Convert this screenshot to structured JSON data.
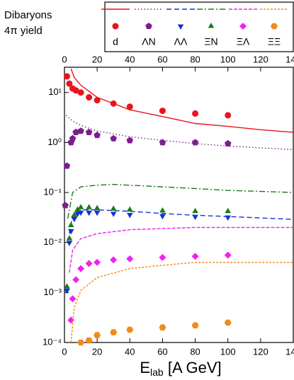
{
  "chart_data": {
    "type": "scatter",
    "title_lines": [
      "Dibaryons",
      "4π yield"
    ],
    "xlabel": {
      "main": "E",
      "sub": "lab",
      "rest": " [A GeV]"
    },
    "xlim": [
      0,
      140
    ],
    "xticks": [
      0,
      20,
      40,
      60,
      80,
      100,
      120,
      140
    ],
    "ylim": [
      0.0001,
      32
    ],
    "log_y": true,
    "yticks": [
      {
        "value": 0.0001,
        "label": "10⁻⁴"
      },
      {
        "value": 0.001,
        "label": "10⁻³"
      },
      {
        "value": 0.01,
        "label": "10⁻²"
      },
      {
        "value": 0.1,
        "label": "10⁻¹"
      },
      {
        "value": 1,
        "label": "10⁰"
      },
      {
        "value": 10,
        "label": "10¹"
      }
    ],
    "series": [
      {
        "name": "d",
        "color": "#e8141c",
        "marker": "circle",
        "dash": "",
        "x": [
          1.5,
          3,
          5,
          7,
          10,
          15,
          20,
          30,
          40,
          60,
          80,
          100
        ],
        "values": [
          21,
          15,
          12,
          11,
          10,
          8,
          7,
          6,
          5.2,
          4.3,
          3.8,
          3.5
        ],
        "line_x": [
          4,
          6,
          10,
          20,
          40,
          60,
          80,
          100,
          120,
          140
        ],
        "line_values": [
          30,
          20,
          14,
          8,
          4.5,
          3.3,
          2.4,
          2.1,
          1.8,
          1.6
        ]
      },
      {
        "name": "ΛN",
        "color": "#7b1e8c",
        "marker": "pentagon",
        "dash": "1.5,3",
        "x": [
          0.5,
          1.5,
          4,
          5,
          7,
          10,
          15,
          20,
          30,
          40,
          60,
          80,
          100
        ],
        "values": [
          0.055,
          0.34,
          1.0,
          1.2,
          1.6,
          1.7,
          1.6,
          1.4,
          1.2,
          1.1,
          1.0,
          1.0,
          0.95
        ],
        "line_x": [
          1,
          5,
          10,
          20,
          40,
          60,
          80,
          100,
          120,
          140
        ],
        "line_values": [
          3.5,
          2.7,
          2.2,
          1.7,
          1.3,
          1.1,
          0.95,
          0.85,
          0.78,
          0.72
        ]
      },
      {
        "name": "ΛΛ",
        "color": "#1530d8",
        "marker": "triangle-down",
        "dash": "7,4",
        "x": [
          1.5,
          3,
          4,
          6,
          8,
          10,
          15,
          20,
          30,
          40,
          60,
          80,
          100
        ],
        "values": [
          0.0011,
          0.01,
          0.017,
          0.03,
          0.038,
          0.04,
          0.04,
          0.04,
          0.038,
          0.036,
          0.034,
          0.033,
          0.032
        ],
        "line_x": [
          3,
          5,
          10,
          20,
          40,
          60,
          80,
          100,
          120,
          140
        ],
        "line_values": [
          0.015,
          0.035,
          0.045,
          0.045,
          0.042,
          0.038,
          0.035,
          0.033,
          0.031,
          0.029
        ]
      },
      {
        "name": "ΞN",
        "color": "#1a7d1a",
        "marker": "triangle-up",
        "dash": "8,3,2,3",
        "x": [
          1.5,
          3,
          4,
          6,
          8,
          10,
          15,
          20,
          30,
          40,
          60,
          80,
          100
        ],
        "values": [
          0.0013,
          0.012,
          0.022,
          0.035,
          0.045,
          0.05,
          0.05,
          0.048,
          0.047,
          0.045,
          0.043,
          0.042,
          0.042
        ],
        "line_x": [
          2,
          5,
          10,
          20,
          30,
          40,
          60,
          80,
          100,
          120,
          140
        ],
        "line_values": [
          0.03,
          0.1,
          0.13,
          0.14,
          0.145,
          0.14,
          0.13,
          0.12,
          0.11,
          0.105,
          0.1
        ]
      },
      {
        "name": "ΞΛ",
        "color": "#f020f0",
        "marker": "diamond",
        "dash": "5,2",
        "x": [
          4,
          5,
          7,
          10,
          15,
          20,
          30,
          40,
          60,
          80,
          100
        ],
        "values": [
          0.00028,
          0.00075,
          0.0018,
          0.003,
          0.0038,
          0.004,
          0.0045,
          0.0047,
          0.005,
          0.0053,
          0.0056
        ],
        "line_x": [
          3,
          5,
          10,
          20,
          40,
          60,
          80,
          100,
          120,
          140
        ],
        "line_values": [
          0.0025,
          0.007,
          0.012,
          0.015,
          0.018,
          0.019,
          0.02,
          0.02,
          0.02,
          0.02
        ]
      },
      {
        "name": "ΞΞ",
        "color": "#f08a1c",
        "marker": "hexagon",
        "dash": "3,2",
        "x": [
          10,
          15,
          20,
          30,
          40,
          60,
          80,
          100
        ],
        "values": [
          0.0001,
          0.00011,
          0.00014,
          0.00016,
          0.00018,
          0.0002,
          0.00022,
          0.00025
        ],
        "line_x": [
          4,
          6,
          10,
          20,
          40,
          60,
          80,
          100,
          120,
          140
        ],
        "line_values": [
          0.0001,
          0.0005,
          0.0011,
          0.002,
          0.003,
          0.0035,
          0.004,
          0.004,
          0.004,
          0.004
        ]
      }
    ]
  }
}
